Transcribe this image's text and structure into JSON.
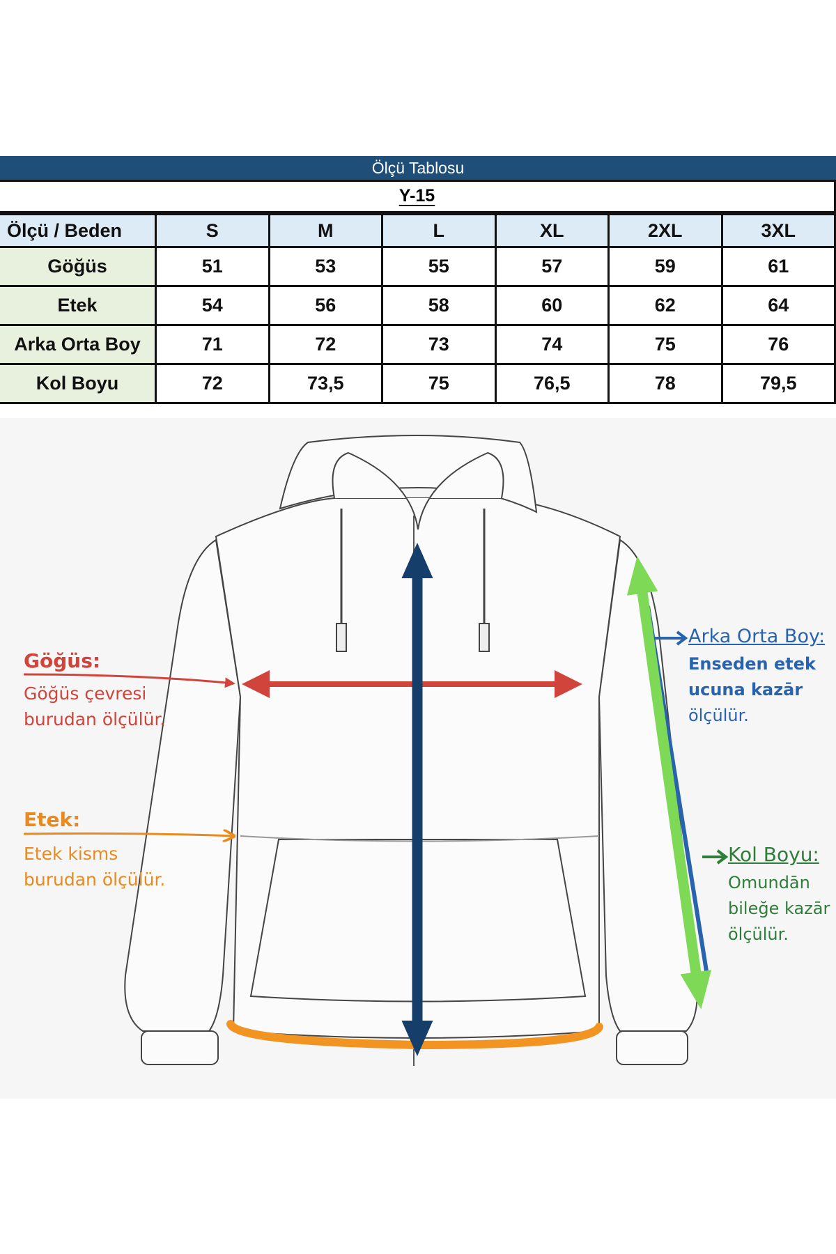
{
  "table": {
    "title": "Ölçü Tablosu",
    "model": "Y-15",
    "header": [
      "Ölçü / Beden",
      "S",
      "M",
      "L",
      "XL",
      "2XL",
      "3XL"
    ],
    "rows": [
      [
        "Göğüs",
        "51",
        "53",
        "55",
        "57",
        "59",
        "61"
      ],
      [
        "Etek",
        "54",
        "56",
        "58",
        "60",
        "62",
        "64"
      ],
      [
        "Arka Orta Boy",
        "71",
        "72",
        "73",
        "74",
        "75",
        "76"
      ],
      [
        "Kol Boyu",
        "72",
        "73,5",
        "75",
        "76,5",
        "78",
        "79,5"
      ]
    ]
  },
  "labels": {
    "gogus": {
      "title": "Göğüs:",
      "line1": "Göğüs çevresi",
      "line2": "burudan ölçülür.",
      "color": "#d0443c"
    },
    "etek": {
      "title": "Etek:",
      "line1": "Etek kisms",
      "line2": "burudan ölçülür.",
      "color": "#e98a20"
    },
    "arka": {
      "title": "Arka Orta Boy:",
      "line1": "Enseden etek",
      "line2": "ucuna kazār",
      "line3": "ölçülür.",
      "color": "#2a63ad"
    },
    "kol": {
      "title": "Kol Boyu:",
      "line1": "Omundān",
      "line2": "bileğe kazār",
      "line3": "ölçülür.",
      "color": "#2f7d3a"
    }
  },
  "colors": {
    "header_bar": "#1f4e79",
    "size_header": "#ddebf7",
    "row_label": "#e8f1de",
    "center_arrow": "#153e6b",
    "sleeve_arrow": "#7ed957"
  }
}
